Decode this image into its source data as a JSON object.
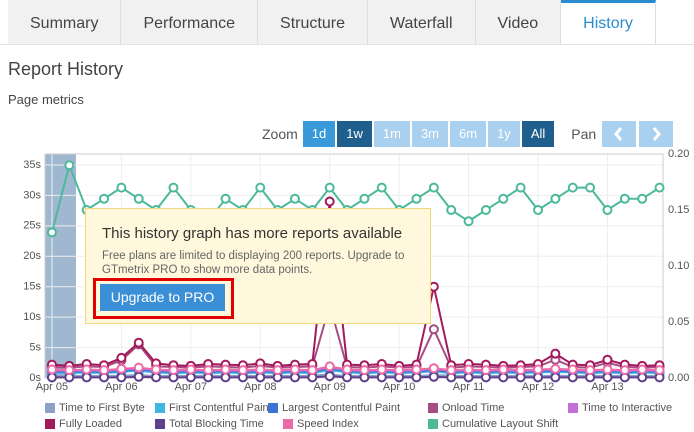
{
  "tabs": [
    "Summary",
    "Performance",
    "Structure",
    "Waterfall",
    "Video",
    "History"
  ],
  "active_tab": 5,
  "heading": "Report History",
  "subheading": "Page metrics",
  "zoom": {
    "label": "Zoom",
    "options": [
      "1d",
      "1w",
      "1m",
      "3m",
      "6m",
      "1y",
      "All"
    ]
  },
  "pan": {
    "label": "Pan"
  },
  "popup": {
    "title": "This history graph has more reports available",
    "body_lines": [
      "Free plans are limited to displaying 200 reports. Upgrade to",
      "GTmetrix PRO to show more data points."
    ],
    "button": "Upgrade to PRO"
  },
  "chart_data": {
    "type": "line",
    "x": [
      5,
      5.25,
      5.5,
      5.75,
      6,
      6.25,
      6.5,
      6.75,
      7,
      7.25,
      7.5,
      7.75,
      8,
      8.25,
      8.5,
      8.75,
      9,
      9.25,
      9.5,
      9.75,
      10,
      10.25,
      10.5,
      10.75,
      11,
      11.25,
      11.5,
      11.75,
      12,
      12.25,
      12.5,
      12.75,
      13,
      13.25,
      13.5,
      13.75
    ],
    "xlim": [
      4.9,
      13.8
    ],
    "xticks": [
      {
        "value": 5,
        "label": "Apr 05"
      },
      {
        "value": 6,
        "label": "Apr 06"
      },
      {
        "value": 7,
        "label": "Apr 07"
      },
      {
        "value": 8,
        "label": "Apr 08"
      },
      {
        "value": 9,
        "label": "Apr 09"
      },
      {
        "value": 10,
        "label": "Apr 10"
      },
      {
        "value": 11,
        "label": "Apr 11"
      },
      {
        "value": 12,
        "label": "Apr 12"
      },
      {
        "value": 13,
        "label": "Apr 13"
      }
    ],
    "ylim": [
      0,
      36.8
    ],
    "yticks": [
      {
        "value": 0,
        "label": "0s"
      },
      {
        "value": 5,
        "label": "5s"
      },
      {
        "value": 10,
        "label": "10s"
      },
      {
        "value": 15,
        "label": "15s"
      },
      {
        "value": 20,
        "label": "20s"
      },
      {
        "value": 25,
        "label": "25s"
      },
      {
        "value": 30,
        "label": "30s"
      },
      {
        "value": 35,
        "label": "35s"
      }
    ],
    "y2lim": [
      0,
      0.2
    ],
    "y2ticks": [
      {
        "value": 0,
        "label": "0.00"
      },
      {
        "value": 0.05,
        "label": "0.05"
      },
      {
        "value": 0.1,
        "label": "0.10"
      },
      {
        "value": 0.15,
        "label": "0.15"
      },
      {
        "value": 0.2,
        "label": "0.20"
      }
    ],
    "grid": true,
    "legend": "bottom",
    "series": [
      {
        "name": "Time to First Byte",
        "color": "#8e9fc9",
        "values": [
          0.4,
          0.3,
          0.4,
          0.3,
          0.4,
          0.5,
          0.3,
          0.4,
          0.3,
          0.4,
          0.3,
          0.4,
          0.3,
          0.4,
          0.3,
          0.4,
          0.6,
          0.3,
          0.4,
          0.3,
          0.4,
          0.3,
          0.5,
          0.4,
          0.3,
          0.4,
          0.3,
          0.4,
          0.3,
          0.4,
          0.3,
          0.4,
          0.3,
          0.4,
          0.3,
          0.4
        ]
      },
      {
        "name": "First Contentful Paint",
        "color": "#3fb6e3",
        "values": [
          0.9,
          0.8,
          0.9,
          0.8,
          1.0,
          1.2,
          0.9,
          0.8,
          0.9,
          0.8,
          0.9,
          0.8,
          0.9,
          0.8,
          0.9,
          0.8,
          1.3,
          0.9,
          0.8,
          0.9,
          0.8,
          0.9,
          1.1,
          0.8,
          0.9,
          0.8,
          0.9,
          0.8,
          0.9,
          1.0,
          0.9,
          0.8,
          0.9,
          0.8,
          0.9,
          0.8
        ]
      },
      {
        "name": "Largest Contentful Paint",
        "color": "#3b73d6",
        "values": [
          1.1,
          1.0,
          1.1,
          1.0,
          1.2,
          1.4,
          1.1,
          1.0,
          1.1,
          1.0,
          1.1,
          1.0,
          1.1,
          1.0,
          1.1,
          1.0,
          1.6,
          1.1,
          1.0,
          1.1,
          1.0,
          1.1,
          1.3,
          1.0,
          1.1,
          1.0,
          1.1,
          1.0,
          1.1,
          1.2,
          1.1,
          1.0,
          1.1,
          1.0,
          1.1,
          1.0
        ]
      },
      {
        "name": "Onload Time",
        "color": "#a64d84",
        "values": [
          1.8,
          1.7,
          1.9,
          1.8,
          2.9,
          5.5,
          1.9,
          1.8,
          1.7,
          1.9,
          1.8,
          1.7,
          2.0,
          1.7,
          1.8,
          1.9,
          12,
          1.8,
          1.7,
          1.9,
          1.7,
          1.8,
          8,
          1.7,
          1.9,
          1.8,
          1.7,
          1.8,
          1.9,
          3.0,
          1.8,
          1.7,
          2.5,
          1.8,
          1.7,
          1.8
        ]
      },
      {
        "name": "Time to Interactive",
        "color": "#c76dd6",
        "values": [
          1.3,
          1.2,
          1.3,
          1.2,
          1.4,
          1.6,
          1.3,
          1.2,
          1.3,
          1.2,
          1.3,
          1.2,
          1.3,
          1.2,
          1.3,
          1.2,
          1.8,
          1.3,
          1.2,
          1.3,
          1.2,
          1.3,
          1.5,
          1.2,
          1.3,
          1.2,
          1.3,
          1.2,
          1.3,
          1.4,
          1.3,
          1.2,
          1.3,
          1.2,
          1.3,
          1.2
        ]
      },
      {
        "name": "Fully Loaded",
        "color": "#a31a5c",
        "values": [
          2.2,
          2.0,
          2.3,
          2.1,
          3.3,
          5.8,
          2.4,
          2.1,
          2.0,
          2.3,
          2.2,
          2.1,
          2.4,
          2.0,
          2.2,
          2.3,
          29,
          2.2,
          2.1,
          2.3,
          2.0,
          2.2,
          15,
          2.1,
          2.3,
          2.2,
          2.0,
          2.1,
          2.3,
          4.0,
          2.2,
          2.1,
          3.0,
          2.2,
          2.0,
          2.1
        ]
      },
      {
        "name": "Total Blocking Time",
        "color": "#5e3f8c",
        "values": [
          0.1,
          0.1,
          0.1,
          0.1,
          0.1,
          0.2,
          0.1,
          0.1,
          0.1,
          0.1,
          0.1,
          0.1,
          0.1,
          0.1,
          0.1,
          0.1,
          0.3,
          0.1,
          0.1,
          0.1,
          0.1,
          0.1,
          0.2,
          0.1,
          0.1,
          0.1,
          0.1,
          0.1,
          0.1,
          0.1,
          0.1,
          0.1,
          0.1,
          0.1,
          0.1,
          0.1
        ]
      },
      {
        "name": "Speed Index",
        "color": "#ec6aa8",
        "values": [
          1.4,
          1.3,
          1.4,
          1.3,
          1.5,
          1.7,
          1.4,
          1.3,
          1.4,
          1.3,
          1.4,
          1.3,
          1.4,
          1.3,
          1.4,
          1.3,
          1.9,
          1.4,
          1.3,
          1.4,
          1.3,
          1.4,
          1.6,
          1.3,
          1.4,
          1.3,
          1.4,
          1.3,
          1.4,
          1.5,
          1.4,
          1.3,
          1.4,
          1.3,
          1.4,
          1.3
        ]
      },
      {
        "name": "Cumulative Layout Shift",
        "color": "#4bb99a",
        "axis": "y2",
        "values": [
          0.13,
          0.19,
          0.15,
          0.16,
          0.17,
          0.16,
          0.15,
          0.17,
          0.15,
          0.14,
          0.16,
          0.15,
          0.17,
          0.15,
          0.16,
          0.15,
          0.17,
          0.15,
          0.16,
          0.17,
          0.15,
          0.16,
          0.17,
          0.15,
          0.14,
          0.15,
          0.16,
          0.17,
          0.15,
          0.16,
          0.17,
          0.17,
          0.15,
          0.16,
          0.16,
          0.17
        ]
      }
    ]
  }
}
